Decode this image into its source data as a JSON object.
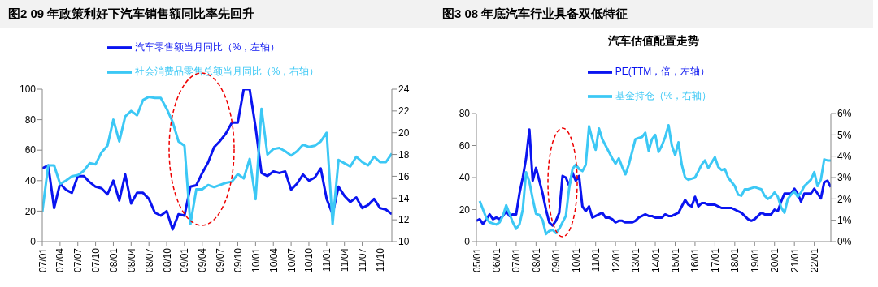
{
  "chart_data": [
    {
      "type": "line",
      "title": "图2  09 年政策利好下汽车销售额同比率先回升",
      "legend": "top",
      "categories": [
        "07/01",
        null,
        null,
        "07/04",
        null,
        null,
        "07/07",
        null,
        null,
        "07/10",
        null,
        null,
        "08/01",
        null,
        null,
        "08/04",
        null,
        null,
        "08/07",
        null,
        null,
        "08/10",
        null,
        null,
        "09/01",
        null,
        null,
        "09/04",
        null,
        null,
        "09/07",
        null,
        null,
        "09/10",
        null,
        null,
        "10/01",
        null,
        null,
        "10/04",
        null,
        null,
        "10/07",
        null,
        null,
        "10/10",
        null,
        null,
        "11/01",
        null,
        null,
        "11/04",
        null,
        null,
        "11/07",
        null,
        null,
        "11/10",
        null,
        null
      ],
      "ylim": [
        0,
        100
      ],
      "yticks": [
        0,
        20,
        40,
        60,
        80,
        100
      ],
      "y2lim": [
        10,
        24
      ],
      "y2ticks": [
        10,
        12,
        14,
        16,
        18,
        20,
        22,
        24
      ],
      "series": [
        {
          "name": "汽车零售额当月同比（%，左轴）",
          "color": "#0a14f0",
          "values": [
            48,
            50,
            22,
            38,
            34,
            32,
            43,
            43,
            39,
            36,
            35,
            31,
            40,
            27,
            44,
            25,
            32,
            32,
            28,
            19,
            17,
            20,
            8,
            18,
            17,
            36,
            37,
            45,
            52,
            62,
            66,
            71,
            78,
            78,
            100,
            100,
            75,
            45,
            43,
            46,
            45,
            46,
            34,
            38,
            44,
            40,
            42,
            48,
            28,
            18,
            36,
            30,
            26,
            29,
            22,
            24,
            28,
            22,
            21,
            18
          ]
        },
        {
          "name": "社会消费品零售总额当月同比（%，右轴）",
          "color": "#3cc8f5",
          "axis": "y2",
          "values": [
            12.7,
            17,
            17,
            15.3,
            15.6,
            16,
            16.1,
            16.5,
            17.2,
            17.1,
            18.2,
            18.8,
            21.2,
            19.2,
            21.5,
            22,
            21.6,
            23,
            23.3,
            23.2,
            23.2,
            22.2,
            21,
            19.2,
            18.8,
            11.6,
            14.8,
            14.8,
            15.2,
            15,
            15.2,
            15.4,
            15.5,
            16.2,
            15.8,
            17.6,
            13.9,
            22.2,
            18,
            18.5,
            18.6,
            18.3,
            17.9,
            18.3,
            18.9,
            18.7,
            18.8,
            19.2,
            20,
            11.6,
            17.5,
            17.2,
            16.9,
            17.8,
            17.3,
            17,
            17.8,
            17.3,
            17.3,
            18.1
          ]
        }
      ]
    },
    {
      "type": "line",
      "title": "图3  08 年底汽车行业具备双低特征",
      "subtitle": "汽车估值配置走势",
      "legend": "top",
      "categories": [
        "05/01",
        null,
        null,
        null,
        null,
        null,
        "06/01",
        null,
        null,
        null,
        null,
        null,
        "07/01",
        null,
        null,
        null,
        null,
        null,
        "08/01",
        null,
        null,
        null,
        null,
        null,
        "09/01",
        null,
        null,
        null,
        null,
        null,
        "10/01",
        null,
        null,
        null,
        null,
        null,
        "11/01",
        null,
        null,
        null,
        null,
        null,
        "12/01",
        null,
        null,
        null,
        null,
        null,
        "13/01",
        null,
        null,
        null,
        null,
        null,
        "14/01",
        null,
        null,
        null,
        null,
        null,
        "15/01",
        null,
        null,
        null,
        null,
        null,
        "16/01",
        null,
        null,
        null,
        null,
        null,
        "17/01",
        null,
        null,
        null,
        null,
        null,
        "18/01",
        null,
        null,
        null,
        null,
        null,
        "19/01",
        null,
        null,
        null,
        null,
        null,
        "20/01",
        null,
        null,
        null,
        null,
        null,
        "21/01",
        null,
        null,
        null,
        null,
        null,
        "22/01",
        null,
        null,
        null,
        null,
        null
      ],
      "ylim": [
        0,
        80
      ],
      "yticks": [
        0,
        20,
        40,
        60,
        80
      ],
      "y2lim": [
        0,
        6
      ],
      "y2ticks": [
        {
          "value": 0,
          "label": "0%"
        },
        {
          "value": 1,
          "label": "1%"
        },
        {
          "value": 2,
          "label": "2%"
        },
        {
          "value": 3,
          "label": "3%"
        },
        {
          "value": 4,
          "label": "4%"
        },
        {
          "value": 5,
          "label": "5%"
        },
        {
          "value": 6,
          "label": "6%"
        }
      ],
      "series": [
        {
          "name": "PE(TTM，倍，左轴）",
          "color": "#0a14f0",
          "values": [
            13,
            14,
            11,
            14,
            17,
            14,
            15,
            14,
            16,
            19,
            16,
            17,
            17,
            30,
            40,
            52,
            70,
            38,
            46,
            38,
            30,
            20,
            12,
            10,
            13,
            18,
            41,
            40,
            35,
            43,
            38,
            41,
            22,
            19,
            22,
            15,
            16,
            17,
            18,
            15,
            15,
            14,
            12,
            13,
            13,
            12,
            12,
            12,
            13,
            15,
            16,
            17,
            16,
            16,
            15,
            15,
            15,
            17,
            16,
            16,
            17,
            18,
            22,
            26,
            23,
            22,
            28,
            22,
            24,
            24,
            23,
            23,
            23,
            22,
            21,
            21,
            21,
            21,
            20,
            19,
            18,
            16,
            14,
            13,
            14,
            16,
            18,
            17,
            17,
            17,
            20,
            19,
            25,
            30,
            30,
            30,
            33,
            30,
            25,
            30,
            30,
            30,
            33,
            30,
            27,
            37,
            38,
            34
          ]
        },
        {
          "name": "基金持仓（%，右轴）",
          "color": "#3cc8f5",
          "axis": "y2",
          "values": [
            null,
            1.9,
            1.5,
            1.1,
            0.9,
            0.85,
            0.8,
            0.9,
            1.2,
            1.7,
            1.3,
            0.9,
            0.6,
            0.8,
            1.5,
            3.25,
            2.8,
            2.0,
            1.3,
            1.25,
            1.0,
            0.35,
            0.5,
            0.55,
            0.4,
            0.6,
            0.9,
            1.2,
            2.5,
            3.4,
            3.6,
            3.4,
            3.3,
            3.6,
            5.4,
            4.8,
            4.3,
            5.3,
            4.8,
            4.5,
            4.2,
            3.9,
            3.65,
            3.9,
            3.5,
            3.15,
            3.6,
            4.2,
            4.8,
            4.85,
            4.9,
            5.1,
            4.25,
            4.8,
            5.0,
            4.2,
            4.5,
            4.9,
            5.45,
            4.5,
            4.05,
            4.65,
            3.6,
            3.0,
            2.9,
            2.95,
            3.0,
            3.3,
            3.6,
            3.8,
            3.45,
            3.7,
            3.95,
            3.5,
            3.35,
            3.4,
            3.0,
            2.8,
            2.6,
            2.2,
            2.15,
            2.45,
            2.45,
            2.5,
            2.55,
            2.5,
            2.45,
            2.15,
            2.0,
            2.1,
            2.3,
            2.1,
            1.6,
            1.35,
            2.0,
            2.2,
            2.35,
            2.1,
            2.3,
            2.6,
            2.75,
            2.9,
            3.25,
            2.6,
            2.9,
            3.85,
            3.8,
            3.8
          ]
        }
      ]
    }
  ]
}
